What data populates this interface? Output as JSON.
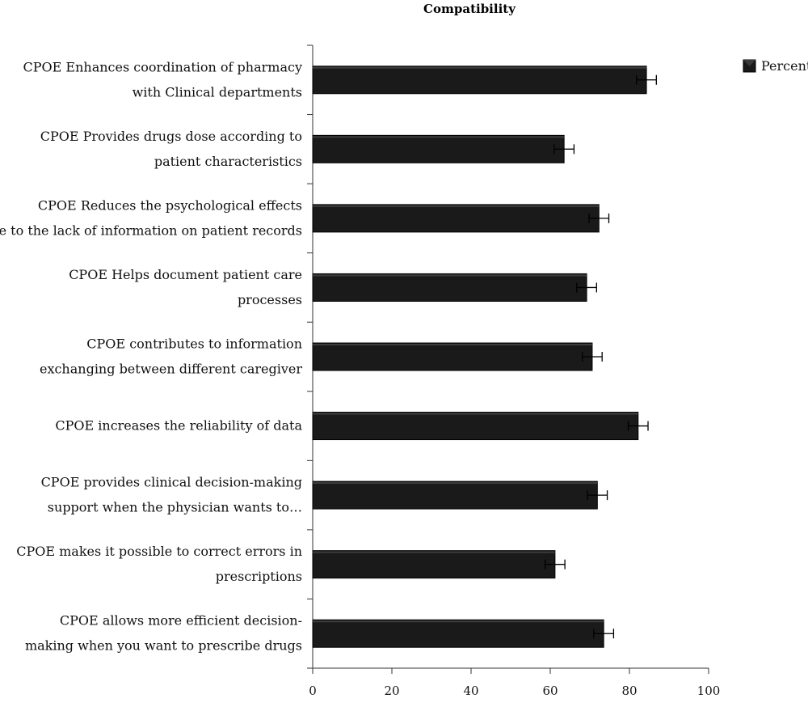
{
  "chart_data": {
    "type": "bar",
    "orientation": "horizontal",
    "title": "Compatibility",
    "legend": {
      "label": "Percent",
      "placement": "top-right"
    },
    "xlim": [
      0,
      100
    ],
    "xticks": [
      0,
      20,
      40,
      60,
      80,
      100
    ],
    "error_bars": true,
    "colors": {
      "bar": "#1a1a1a",
      "axis": "#333333"
    },
    "categories": [
      [
        "CPOE Enhances coordination of pharmacy",
        "with Clinical departments"
      ],
      [
        "CPOE Provides drugs dose according to",
        "patient characteristics"
      ],
      [
        "CPOE Reduces the psychological effects",
        "due to the lack of information on patient records"
      ],
      [
        "CPOE Helps document patient care",
        "processes"
      ],
      [
        "CPOE contributes to information",
        "exchanging between different caregiver"
      ],
      [
        "CPOE increases the reliability of data"
      ],
      [
        "CPOE provides clinical decision-making",
        "support when the physician wants to…"
      ],
      [
        "CPOE makes it possible to correct errors in",
        "prescriptions"
      ],
      [
        "CPOE allows more efficient decision-",
        "making when you want to prescribe drugs"
      ]
    ],
    "series": [
      {
        "name": "Percent",
        "values": [
          84.3,
          63.5,
          72.3,
          69.2,
          70.6,
          82.2,
          71.9,
          61.2,
          73.5
        ],
        "error": [
          2.5,
          2.5,
          2.5,
          2.5,
          2.5,
          2.5,
          2.5,
          2.5,
          2.5
        ]
      }
    ]
  }
}
